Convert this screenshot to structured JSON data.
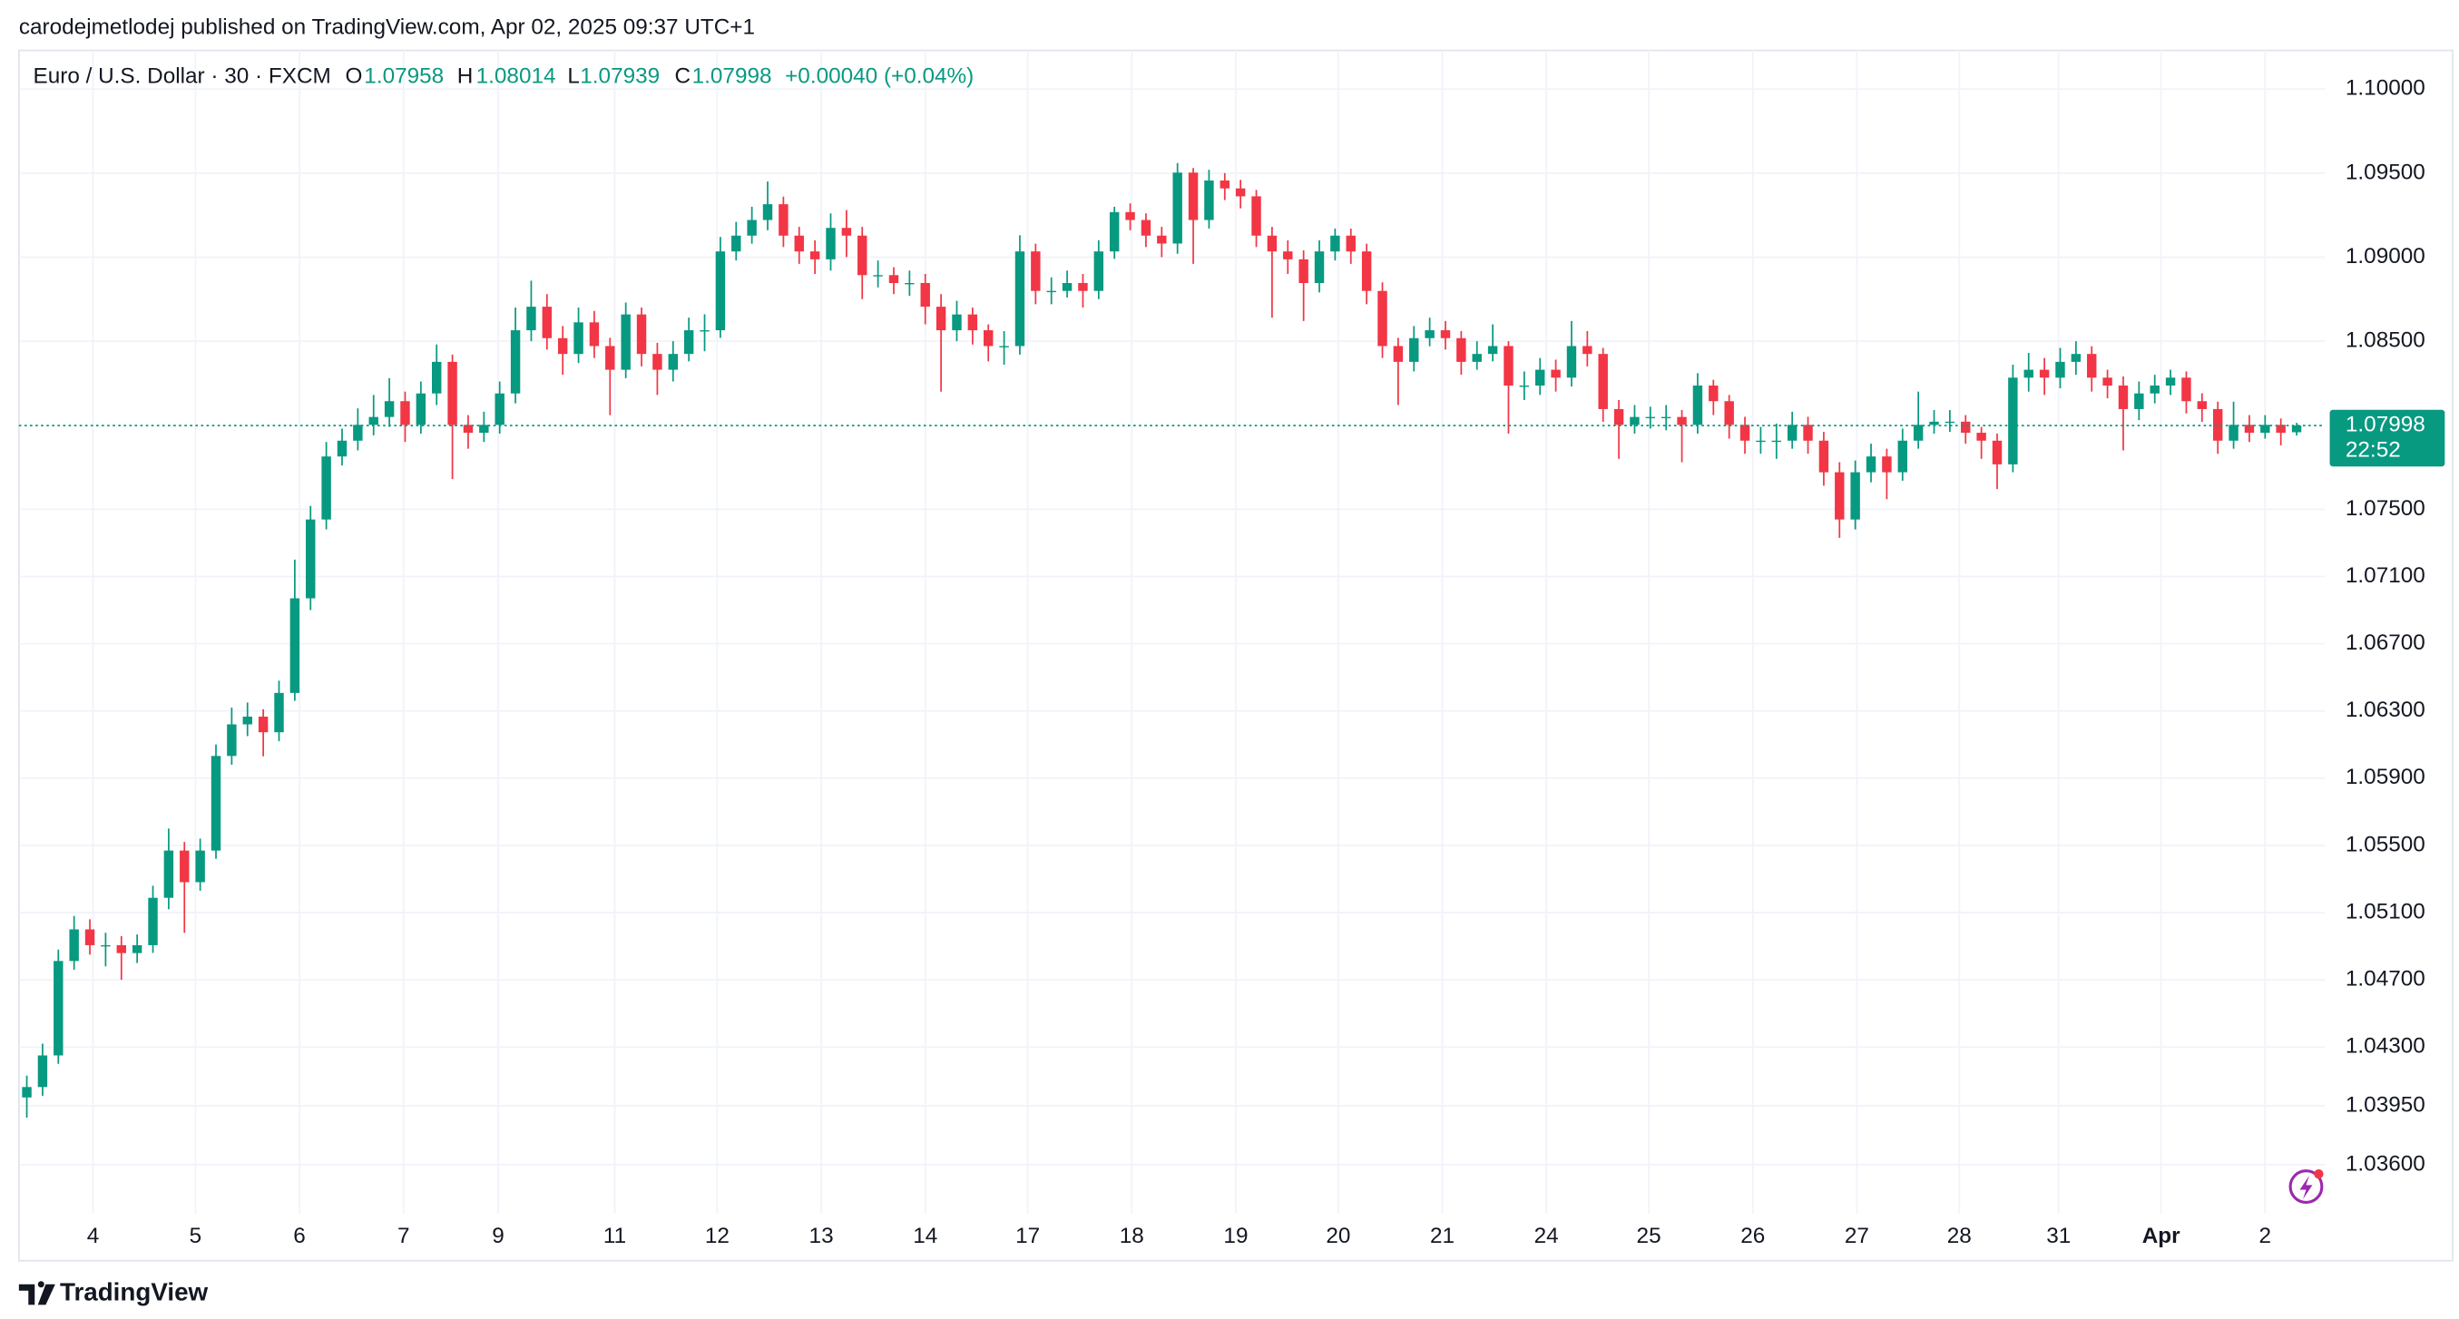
{
  "header": "carodejmetlodej published on TradingView.com, Apr 02, 2025 09:37 UTC+1",
  "footer": "TradingView",
  "chart_data": {
    "type": "candlestick",
    "symbol": "Euro / U.S. Dollar · 30 · FXCM",
    "ohlc": [
      {
        "label": "O",
        "value": 1.07958
      },
      {
        "label": "H",
        "value": 1.08014
      },
      {
        "label": "L",
        "value": 1.07939
      },
      {
        "label": "C",
        "value": 1.07998
      }
    ],
    "change": "+0.00040 (+0.04%)",
    "countdown": "22:52",
    "up_color": "#089981",
    "down_color": "#f23645",
    "grid": true,
    "xlim": [
      -0.5,
      145.8
    ],
    "ylim": [
      1.0331,
      1.1023
    ],
    "xticks": [
      {
        "value": 4.2,
        "label": "4"
      },
      {
        "value": 10.7,
        "label": "5"
      },
      {
        "value": 17.3,
        "label": "6"
      },
      {
        "value": 23.9,
        "label": "7"
      },
      {
        "value": 29.9,
        "label": "9"
      },
      {
        "value": 37.3,
        "label": "11"
      },
      {
        "value": 43.8,
        "label": "12"
      },
      {
        "value": 50.4,
        "label": "13"
      },
      {
        "value": 57,
        "label": "14"
      },
      {
        "value": 63.5,
        "label": "17"
      },
      {
        "value": 70.1,
        "label": "18"
      },
      {
        "value": 76.7,
        "label": "19"
      },
      {
        "value": 83.2,
        "label": "20"
      },
      {
        "value": 89.8,
        "label": "21"
      },
      {
        "value": 96.4,
        "label": "24"
      },
      {
        "value": 102.9,
        "label": "25"
      },
      {
        "value": 109.5,
        "label": "26"
      },
      {
        "value": 116.1,
        "label": "27"
      },
      {
        "value": 122.6,
        "label": "28"
      },
      {
        "value": 128.9,
        "label": "31"
      },
      {
        "value": 135.4,
        "label": "Apr"
      },
      {
        "value": 142,
        "label": "2"
      }
    ],
    "yticks": [
      {
        "value": 1.1,
        "label": "1.10000"
      },
      {
        "value": 1.095,
        "label": "1.09500"
      },
      {
        "value": 1.09,
        "label": "1.09000"
      },
      {
        "value": 1.085,
        "label": "1.08500"
      },
      {
        "value": 1.075,
        "label": "1.07500"
      },
      {
        "value": 1.071,
        "label": "1.07100"
      },
      {
        "value": 1.067,
        "label": "1.06700"
      },
      {
        "value": 1.063,
        "label": "1.06300"
      },
      {
        "value": 1.059,
        "label": "1.05900"
      },
      {
        "value": 1.055,
        "label": "1.05500"
      },
      {
        "value": 1.051,
        "label": "1.05100"
      },
      {
        "value": 1.047,
        "label": "1.04700"
      },
      {
        "value": 1.043,
        "label": "1.04300"
      },
      {
        "value": 1.0395,
        "label": "1.03950"
      },
      {
        "value": 1.036,
        "label": "1.03600"
      }
    ],
    "open": [
      1.04,
      1.04062,
      1.0425,
      1.04812,
      1.05,
      1.04906,
      1.04906,
      1.04859,
      1.04906,
      1.05188,
      1.05469,
      1.05281,
      1.05469,
      1.06032,
      1.0622,
      1.06266,
      1.06173,
      1.06407,
      1.0697,
      1.07439,
      1.07814,
      1.07908,
      1.08002,
      1.08049,
      1.08143,
      1.08002,
      1.08189,
      1.08377,
      1.08002,
      1.07955,
      1.08002,
      1.08189,
      1.08565,
      1.08705,
      1.08518,
      1.08424,
      1.08612,
      1.08471,
      1.0833,
      1.08659,
      1.08424,
      1.0833,
      1.08424,
      1.08565,
      1.08565,
      1.09034,
      1.09128,
      1.09221,
      1.09315,
      1.09128,
      1.09034,
      1.08987,
      1.09174,
      1.09128,
      1.08893,
      1.08893,
      1.08846,
      1.08846,
      1.08705,
      1.08565,
      1.08659,
      1.08565,
      1.08471,
      1.08471,
      1.09034,
      1.08799,
      1.08799,
      1.08846,
      1.08799,
      1.09034,
      1.09268,
      1.09221,
      1.09128,
      1.09081,
      1.09503,
      1.09221,
      1.09456,
      1.09409,
      1.09362,
      1.09128,
      1.09034,
      1.08987,
      1.08846,
      1.09034,
      1.09128,
      1.09034,
      1.08799,
      1.08471,
      1.08377,
      1.08518,
      1.08565,
      1.08518,
      1.08377,
      1.08424,
      1.08471,
      1.08236,
      1.08236,
      1.0833,
      1.08283,
      1.08471,
      1.08424,
      1.08096,
      1.08002,
      1.08049,
      1.08049,
      1.08049,
      1.08002,
      1.08236,
      1.08143,
      1.08002,
      1.07908,
      1.07908,
      1.07908,
      1.08002,
      1.07908,
      1.0772,
      1.07439,
      1.0772,
      1.07814,
      1.0772,
      1.07908,
      1.08002,
      1.08021,
      1.08021,
      1.07955,
      1.07908,
      1.07767,
      1.08283,
      1.0833,
      1.08283,
      1.08377,
      1.08424,
      1.08283,
      1.08236,
      1.08096,
      1.08189,
      1.08236,
      1.08283,
      1.08143,
      1.08096,
      1.07908,
      1.08002,
      1.07955,
      1.08002,
      1.07958
    ],
    "high": [
      1.0413,
      1.0432,
      1.0488,
      1.0508,
      1.0506,
      1.0498,
      1.0496,
      1.0497,
      1.0526,
      1.056,
      1.0552,
      1.0554,
      1.061,
      1.0632,
      1.0635,
      1.0631,
      1.0648,
      1.072,
      1.0752,
      1.079,
      1.0798,
      1.081,
      1.0818,
      1.0828,
      1.082,
      1.0826,
      1.0848,
      1.0842,
      1.0806,
      1.0808,
      1.0826,
      1.087,
      1.0886,
      1.0878,
      1.0859,
      1.087,
      1.0868,
      1.0852,
      1.0873,
      1.087,
      1.0849,
      1.085,
      1.0864,
      1.0866,
      1.0912,
      1.0921,
      1.093,
      1.0945,
      1.0936,
      1.0918,
      1.091,
      1.0926,
      1.0928,
      1.0918,
      1.0898,
      1.0894,
      1.0892,
      1.089,
      1.0878,
      1.0874,
      1.087,
      1.086,
      1.0856,
      1.0913,
      1.0908,
      1.0888,
      1.0892,
      1.089,
      1.091,
      1.093,
      1.0932,
      1.0926,
      1.0918,
      1.0956,
      1.0953,
      1.0952,
      1.095,
      1.0946,
      1.094,
      1.0918,
      1.091,
      1.0904,
      1.091,
      1.0917,
      1.0917,
      1.0908,
      1.0885,
      1.0852,
      1.0859,
      1.0864,
      1.0862,
      1.0856,
      1.085,
      1.086,
      1.085,
      1.0832,
      1.084,
      1.0839,
      1.0862,
      1.0856,
      1.0846,
      1.0815,
      1.0812,
      1.0811,
      1.0812,
      1.0809,
      1.0831,
      1.0827,
      1.0818,
      1.0805,
      1.0799,
      1.0801,
      1.0808,
      1.0805,
      1.0796,
      1.0778,
      1.0779,
      1.0789,
      1.0786,
      1.0798,
      1.082,
      1.0809,
      1.0809,
      1.0806,
      1.0799,
      1.0795,
      1.0836,
      1.0843,
      1.084,
      1.0846,
      1.085,
      1.0847,
      1.0833,
      1.0829,
      1.0826,
      1.083,
      1.0833,
      1.0832,
      1.0819,
      1.0814,
      1.0814,
      1.0806,
      1.0806,
      1.0804,
      1.08014
    ],
    "low": [
      1.0388,
      1.0401,
      1.042,
      1.0476,
      1.0485,
      1.0478,
      1.047,
      1.048,
      1.0486,
      1.0512,
      1.0498,
      1.0523,
      1.0542,
      1.0598,
      1.0615,
      1.0603,
      1.0612,
      1.0636,
      1.069,
      1.0738,
      1.0776,
      1.0785,
      1.0794,
      1.0799,
      1.079,
      1.0795,
      1.0812,
      1.0768,
      1.0786,
      1.079,
      1.0795,
      1.0813,
      1.085,
      1.0845,
      1.083,
      1.0837,
      1.084,
      1.0806,
      1.0828,
      1.0835,
      1.0818,
      1.0826,
      1.0838,
      1.0844,
      1.0852,
      1.0898,
      1.0908,
      1.0916,
      1.0906,
      1.0896,
      1.089,
      1.0892,
      1.09,
      1.0875,
      1.0882,
      1.0878,
      1.0877,
      1.086,
      1.082,
      1.085,
      1.0848,
      1.0838,
      1.0836,
      1.0842,
      1.0872,
      1.0872,
      1.0876,
      1.087,
      1.0875,
      1.0899,
      1.0916,
      1.0906,
      1.09,
      1.0902,
      1.0896,
      1.0917,
      1.0934,
      1.0929,
      1.0906,
      1.0864,
      1.089,
      1.0862,
      1.0879,
      1.0898,
      1.0896,
      1.0872,
      1.084,
      1.0812,
      1.0832,
      1.0847,
      1.0845,
      1.083,
      1.0833,
      1.0838,
      1.0795,
      1.0815,
      1.0818,
      1.082,
      1.0823,
      1.0835,
      1.0802,
      1.078,
      1.0795,
      1.0798,
      1.0797,
      1.0778,
      1.0795,
      1.0806,
      1.0792,
      1.0783,
      1.0783,
      1.078,
      1.0786,
      1.0783,
      1.0764,
      1.0733,
      1.0738,
      1.0766,
      1.0756,
      1.0767,
      1.0786,
      1.0795,
      1.0796,
      1.0789,
      1.078,
      1.0762,
      1.0772,
      1.082,
      1.0818,
      1.0822,
      1.083,
      1.082,
      1.0816,
      1.0785,
      1.0803,
      1.0813,
      1.0818,
      1.0807,
      1.0802,
      1.0783,
      1.0786,
      1.079,
      1.0792,
      1.0788,
      1.07939
    ],
    "close": [
      1.04062,
      1.0425,
      1.04812,
      1.05,
      1.04906,
      1.04906,
      1.04859,
      1.04906,
      1.05188,
      1.05469,
      1.05281,
      1.05469,
      1.06032,
      1.0622,
      1.06266,
      1.06173,
      1.06407,
      1.0697,
      1.07439,
      1.07814,
      1.07908,
      1.08002,
      1.08049,
      1.08143,
      1.08002,
      1.08189,
      1.08377,
      1.08002,
      1.07955,
      1.08002,
      1.08189,
      1.08565,
      1.08705,
      1.08518,
      1.08424,
      1.08612,
      1.08471,
      1.0833,
      1.08659,
      1.08424,
      1.0833,
      1.08424,
      1.08565,
      1.08565,
      1.09034,
      1.09128,
      1.09221,
      1.09315,
      1.09128,
      1.09034,
      1.08987,
      1.09174,
      1.09128,
      1.08893,
      1.08893,
      1.08846,
      1.08846,
      1.08705,
      1.08565,
      1.08659,
      1.08565,
      1.08471,
      1.08471,
      1.09034,
      1.08799,
      1.08799,
      1.08846,
      1.08799,
      1.09034,
      1.09268,
      1.09221,
      1.09128,
      1.09081,
      1.09503,
      1.09221,
      1.09456,
      1.09409,
      1.09362,
      1.09128,
      1.09034,
      1.08987,
      1.08846,
      1.09034,
      1.09128,
      1.09034,
      1.08799,
      1.08471,
      1.08377,
      1.08518,
      1.08565,
      1.08518,
      1.08377,
      1.08424,
      1.08471,
      1.08236,
      1.08236,
      1.0833,
      1.08283,
      1.08471,
      1.08424,
      1.08096,
      1.08002,
      1.08049,
      1.08049,
      1.08049,
      1.08002,
      1.08236,
      1.08143,
      1.08002,
      1.07908,
      1.07908,
      1.07908,
      1.08002,
      1.07908,
      1.0772,
      1.07439,
      1.0772,
      1.07814,
      1.0772,
      1.07908,
      1.08002,
      1.08021,
      1.08021,
      1.07955,
      1.07908,
      1.07767,
      1.08283,
      1.0833,
      1.08283,
      1.08377,
      1.08424,
      1.08283,
      1.08236,
      1.08096,
      1.08189,
      1.08236,
      1.08283,
      1.08143,
      1.08096,
      1.07908,
      1.08002,
      1.07955,
      1.08002,
      1.07955,
      1.07998
    ]
  }
}
